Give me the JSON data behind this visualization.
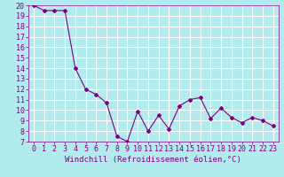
{
  "x": [
    0,
    1,
    2,
    3,
    4,
    5,
    6,
    7,
    8,
    9,
    10,
    11,
    12,
    13,
    14,
    15,
    16,
    17,
    18,
    19,
    20,
    21,
    22,
    23
  ],
  "y": [
    20,
    19.5,
    19.5,
    19.5,
    14,
    12,
    11.5,
    10.7,
    7.5,
    7,
    9.9,
    8,
    9.5,
    8.2,
    10.4,
    11,
    11.2,
    9.2,
    10.2,
    9.3,
    8.8,
    9.3,
    9.0,
    8.5
  ],
  "line_color": "#800080",
  "marker": "D",
  "marker_size": 2,
  "bg_color": "#b2ebee",
  "grid_color": "#ffffff",
  "xlabel": "Windchill (Refroidissement éolien,°C)",
  "xlabel_fontsize": 6.5,
  "tick_fontsize": 6,
  "xlim": [
    -0.5,
    23.5
  ],
  "ylim": [
    7,
    20
  ],
  "yticks": [
    7,
    8,
    9,
    10,
    11,
    12,
    13,
    14,
    15,
    16,
    17,
    18,
    19,
    20
  ],
  "xticks": [
    0,
    1,
    2,
    3,
    4,
    5,
    6,
    7,
    8,
    9,
    10,
    11,
    12,
    13,
    14,
    15,
    16,
    17,
    18,
    19,
    20,
    21,
    22,
    23
  ]
}
